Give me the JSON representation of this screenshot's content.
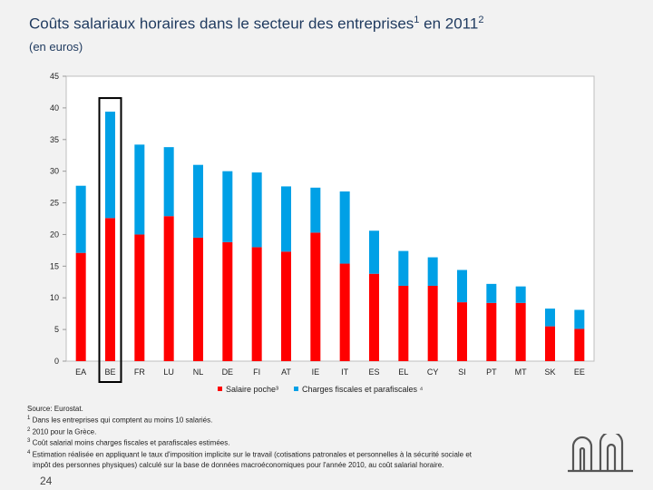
{
  "title": "Coûts salariaux horaires dans le secteur des entreprises",
  "title_sup1": "1",
  "title_mid": " en 2011",
  "title_sup2": "2",
  "subtitle": "(en euros)",
  "chart_data": {
    "type": "bar",
    "stacked": true,
    "categories": [
      "EA",
      "BE",
      "FR",
      "LU",
      "NL",
      "DE",
      "FI",
      "AT",
      "IE",
      "IT",
      "ES",
      "EL",
      "CY",
      "SI",
      "PT",
      "MT",
      "SK",
      "EE"
    ],
    "series": [
      {
        "name": "Salaire poche³",
        "color": "#ff0000",
        "values": [
          17.1,
          22.6,
          20.0,
          22.9,
          19.5,
          18.8,
          18.0,
          17.3,
          20.3,
          15.4,
          13.8,
          11.9,
          11.9,
          9.3,
          9.2,
          9.2,
          5.5,
          5.1
        ]
      },
      {
        "name": "Charges fiscales et parafiscales ⁴",
        "color": "#00a0e6",
        "values": [
          10.6,
          16.8,
          14.2,
          10.9,
          11.5,
          11.2,
          11.8,
          10.3,
          7.1,
          11.4,
          6.8,
          5.5,
          4.5,
          5.1,
          3.0,
          2.6,
          2.8,
          3.0
        ]
      }
    ],
    "ylim": [
      0,
      45
    ],
    "yticks": [
      0,
      5,
      10,
      15,
      20,
      25,
      30,
      35,
      40,
      45
    ],
    "highlight": "BE",
    "legend_position": "bottom",
    "grid": false
  },
  "footnotes": {
    "source": "Source: Eurostat.",
    "n1": "Dans les entreprises qui comptent au moins 10 salariés.",
    "n2": "2010 pour la Grèce.",
    "n3": "Coût salarial moins charges fiscales et parafiscales estimées.",
    "n4a": "Estimation réalisée en appliquant le taux d'imposition implicite sur le travail (cotisations patronales et personnelles à la sécurité sociale et",
    "n4b": "impôt des personnes physiques) calculé sur la base de données macroéconomiques pour l'année 2010, au coût salarial horaire.",
    "m1": "1",
    "m2": "2",
    "m3": "3",
    "m4": "4"
  },
  "page_number": "24"
}
